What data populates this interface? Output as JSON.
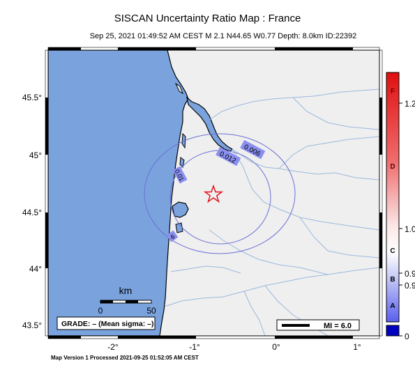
{
  "header": {
    "title": "SISCAN Uncertainty Ratio Map : France",
    "subtitle": "Sep 25, 2021 01:49:52 AM CEST   M 2.1   N44.65 W0.77   Depth: 8.0km   ID:22392"
  },
  "footer": {
    "processed": "Map Version 1 Processed 2021-09-25 01:52:05 AM CEST"
  },
  "axes": {
    "lat_ticks": [
      "45.5°",
      "45°",
      "44.5°",
      "44°",
      "43.5°"
    ],
    "lon_ticks": [
      "-2°",
      "-1°",
      "0°",
      "1°"
    ]
  },
  "contours": {
    "labels": [
      "0.006",
      "0.012",
      "0.01",
      "6"
    ]
  },
  "scale_bar": {
    "unit": "km",
    "start": "0",
    "end": "50"
  },
  "grade_box": {
    "text": "GRADE: – (Mean sigma: –)"
  },
  "legend": {
    "mi_label": "MI = 6.0"
  },
  "colorbar": {
    "grades": [
      "F",
      "D",
      "C",
      "B",
      "A"
    ],
    "values": [
      "1.2",
      "1.0",
      "0.9",
      "0.9",
      "0"
    ]
  },
  "colors": {
    "ocean": "#7aa3de",
    "land": "#efefef",
    "rivers": "#9bb8dc",
    "contour": "#6b6fd6",
    "contour_label_bg": "#8a8ff0",
    "epicenter": "#e0141c"
  },
  "epicenter": {
    "lat": 44.65,
    "lon": -0.77,
    "symbol": "star"
  }
}
